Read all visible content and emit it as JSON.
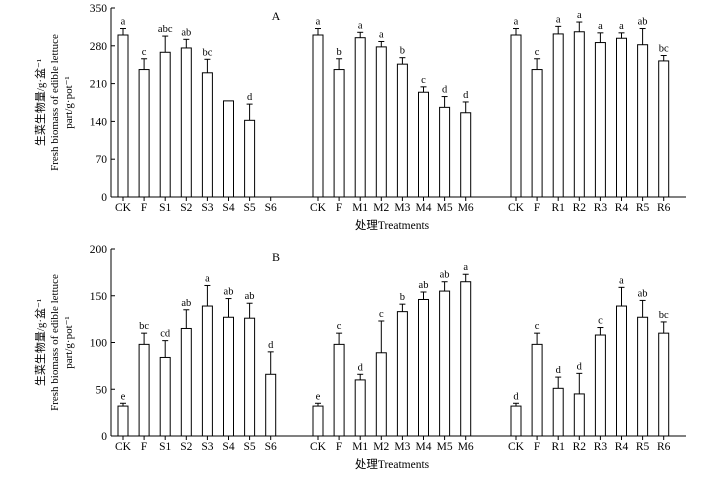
{
  "chart_data": [
    {
      "type": "bar",
      "panel_label": "A",
      "xlabel": "处理Treatments",
      "ylabel_line1": "生菜生物量/g·盆⁻¹",
      "ylabel_line2": "Fresh biomass of edible lettuce",
      "ylabel_line3": "part/g·pot⁻¹",
      "ylim": [
        0,
        350
      ],
      "yticks": [
        0,
        70,
        140,
        210,
        280,
        350
      ],
      "groups": [
        {
          "categories": [
            "CK",
            "F",
            "S1",
            "S2",
            "S3",
            "S4",
            "S5",
            "S6"
          ],
          "values": [
            300,
            236,
            268,
            276,
            230,
            178,
            142,
            null
          ],
          "errors": [
            12,
            20,
            30,
            16,
            25,
            0,
            30,
            null
          ],
          "letters": [
            "a",
            "c",
            "abc",
            "ab",
            "bc",
            "",
            "d",
            ""
          ]
        },
        {
          "categories": [
            "CK",
            "F",
            "M1",
            "M2",
            "M3",
            "M4",
            "M5",
            "M6"
          ],
          "values": [
            300,
            236,
            295,
            278,
            246,
            194,
            166,
            156
          ],
          "errors": [
            12,
            20,
            10,
            10,
            12,
            10,
            20,
            20
          ],
          "letters": [
            "a",
            "b",
            "a",
            "a",
            "b",
            "c",
            "d",
            "d"
          ]
        },
        {
          "categories": [
            "CK",
            "F",
            "R1",
            "R2",
            "R3",
            "R4",
            "R5",
            "R6"
          ],
          "values": [
            300,
            236,
            302,
            306,
            286,
            294,
            282,
            252
          ],
          "errors": [
            12,
            20,
            14,
            18,
            18,
            10,
            30,
            10
          ],
          "letters": [
            "a",
            "c",
            "a",
            "a",
            "a",
            "a",
            "ab",
            "bc"
          ]
        }
      ]
    },
    {
      "type": "bar",
      "panel_label": "B",
      "xlabel": "处理Treatments",
      "ylabel_line1": "生菜生物量/g·盆⁻¹",
      "ylabel_line2": "Fresh biomass of edible lettuce",
      "ylabel_line3": "part/g·pot⁻¹",
      "ylim": [
        0,
        200
      ],
      "yticks": [
        0,
        50,
        100,
        150,
        200
      ],
      "groups": [
        {
          "categories": [
            "CK",
            "F",
            "S1",
            "S2",
            "S3",
            "S4",
            "S5",
            "S6"
          ],
          "values": [
            32,
            98,
            84,
            115,
            139,
            127,
            126,
            66
          ],
          "errors": [
            3,
            12,
            18,
            20,
            22,
            20,
            16,
            24
          ],
          "letters": [
            "e",
            "bc",
            "cd",
            "ab",
            "a",
            "ab",
            "ab",
            "d"
          ]
        },
        {
          "categories": [
            "CK",
            "F",
            "M1",
            "M2",
            "M3",
            "M4",
            "M5",
            "M6"
          ],
          "values": [
            32,
            98,
            60,
            89,
            133,
            146,
            155,
            165
          ],
          "errors": [
            3,
            12,
            6,
            34,
            8,
            8,
            10,
            8
          ],
          "letters": [
            "e",
            "c",
            "d",
            "c",
            "b",
            "ab",
            "ab",
            "a"
          ]
        },
        {
          "categories": [
            "CK",
            "F",
            "R1",
            "R2",
            "R3",
            "R4",
            "R5",
            "R6"
          ],
          "values": [
            32,
            98,
            51,
            45,
            108,
            139,
            127,
            110
          ],
          "errors": [
            3,
            12,
            12,
            22,
            8,
            20,
            18,
            12
          ],
          "letters": [
            "d",
            "c",
            "d",
            "d",
            "c",
            "a",
            "ab",
            "bc"
          ]
        }
      ]
    }
  ]
}
